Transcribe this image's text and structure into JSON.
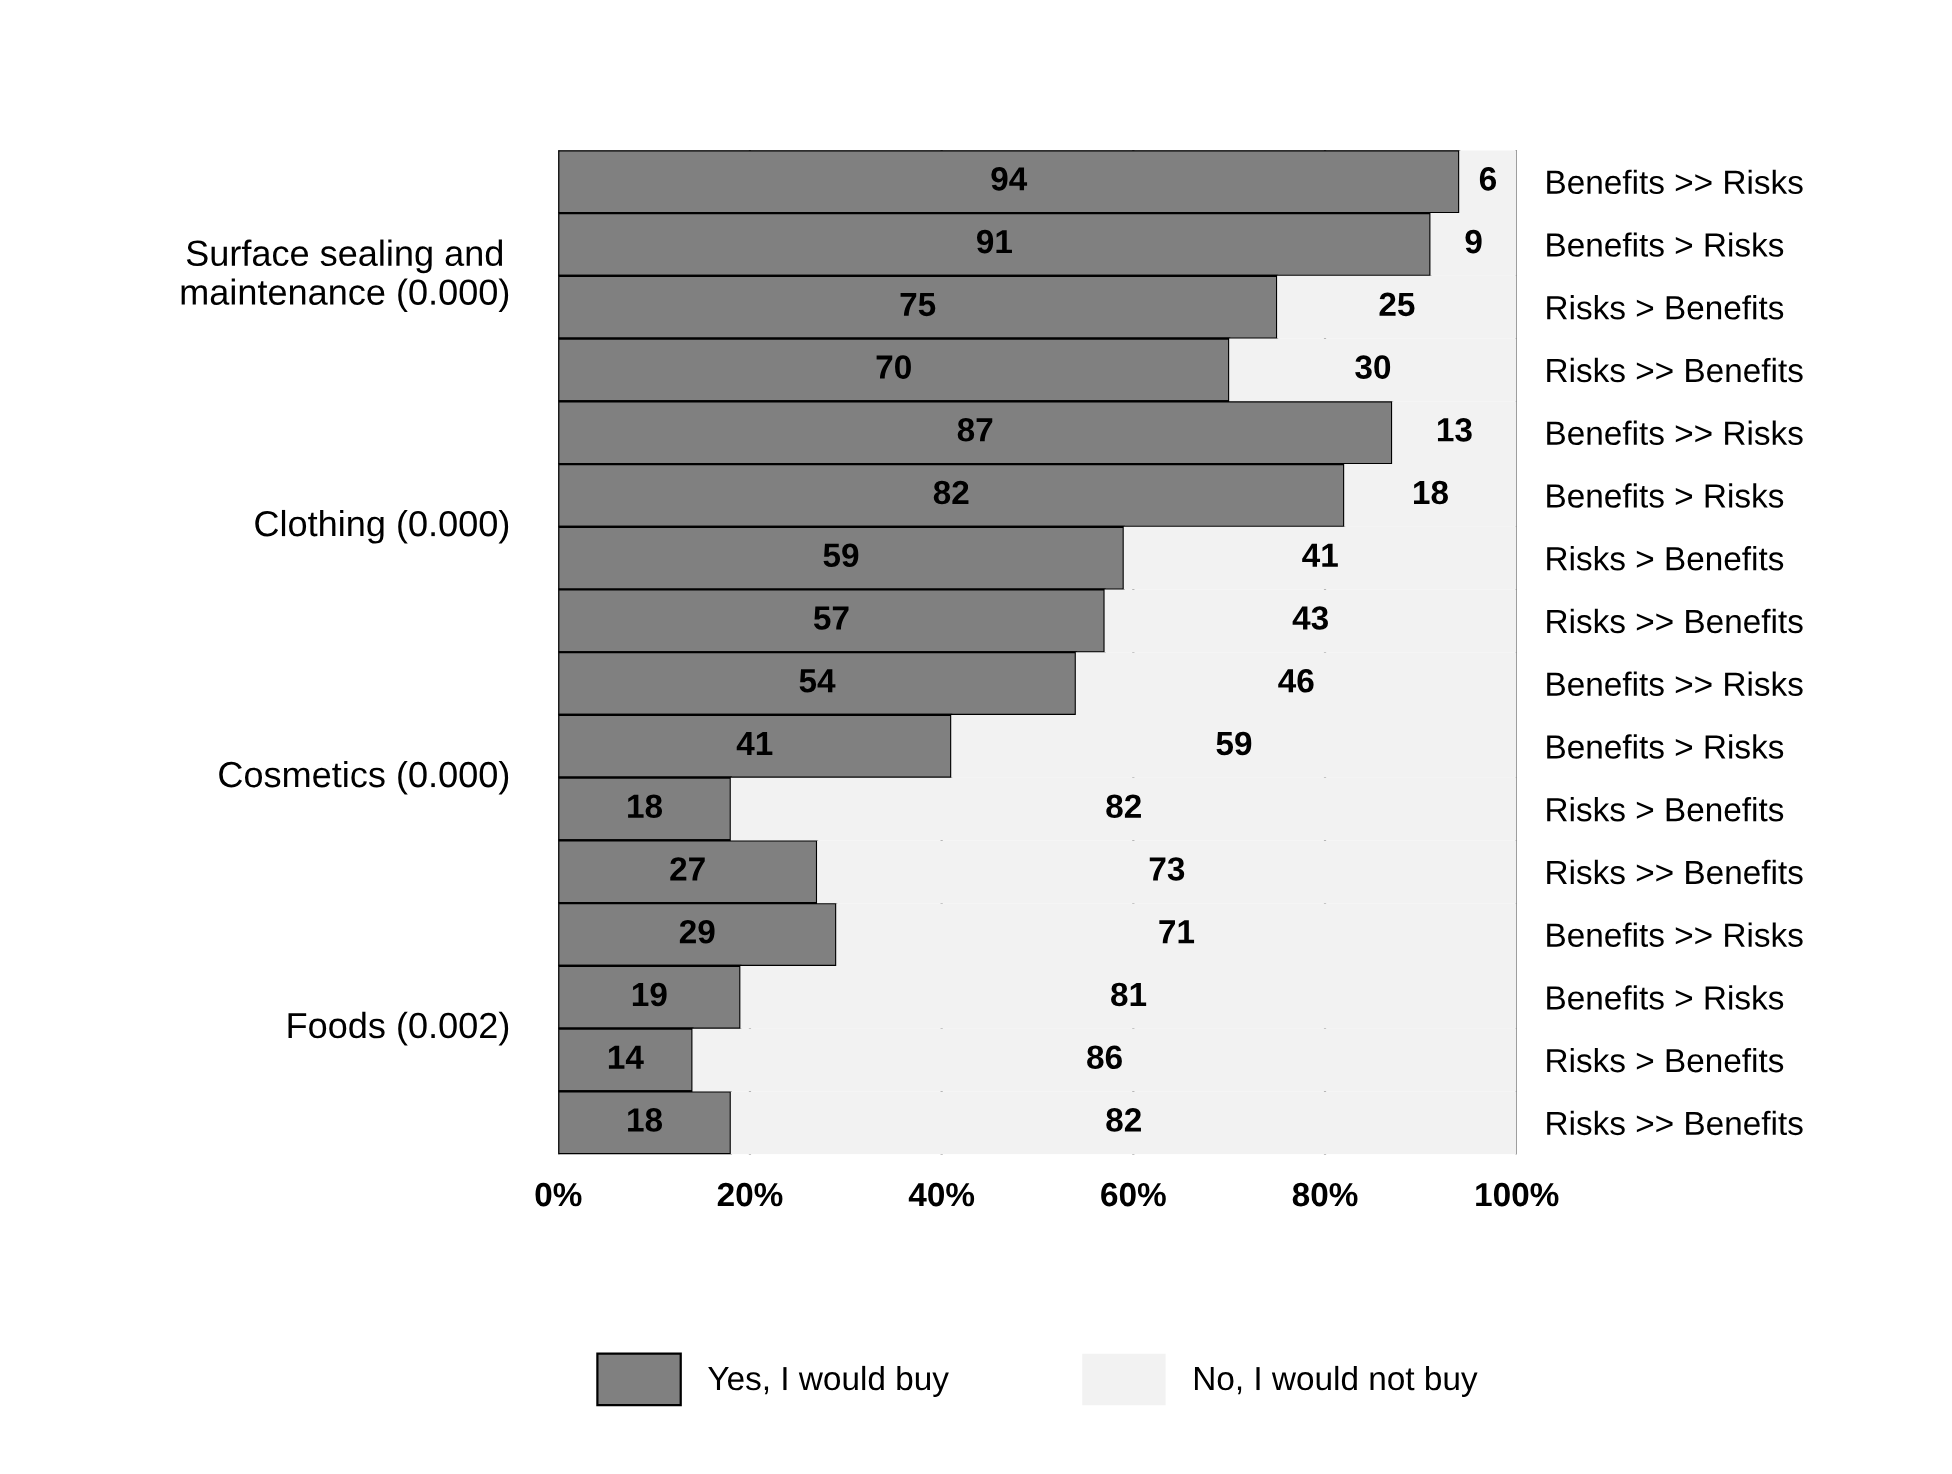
{
  "chart_data": {
    "type": "bar",
    "orientation": "horizontal",
    "stacked": true,
    "categories": [
      "Benefits >> Risks",
      "Benefits > Risks",
      "Risks > Benefits",
      "Risks >> Benefits",
      "Benefits >> Risks",
      "Benefits > Risks",
      "Risks > Benefits",
      "Risks >> Benefits",
      "Benefits >> Risks",
      "Benefits > Risks",
      "Risks > Benefits",
      "Risks >> Benefits",
      "Benefits >> Risks",
      "Benefits > Risks",
      "Risks > Benefits",
      "Risks >> Benefits"
    ],
    "series": [
      {
        "name": "Yes, I would buy",
        "color": "#808080",
        "values": [
          94,
          91,
          75,
          70,
          87,
          82,
          59,
          57,
          54,
          41,
          18,
          27,
          29,
          19,
          14,
          18
        ]
      },
      {
        "name": "No, I would not buy",
        "color": "#f2f2f2",
        "values": [
          6,
          9,
          25,
          30,
          13,
          18,
          41,
          43,
          46,
          59,
          82,
          73,
          71,
          81,
          86,
          82
        ]
      }
    ],
    "annotations": [
      "Surface sealing and\nmaintenance (0.000)",
      "Clothing (0.000)",
      "Cosmetics (0.000)",
      "Foods (0.002)"
    ],
    "xlim": [
      0,
      100
    ],
    "xticks": [
      {
        "value": 0,
        "label": "0%"
      },
      {
        "value": 20,
        "label": "20%"
      },
      {
        "value": 40,
        "label": "40%"
      },
      {
        "value": 60,
        "label": "60%"
      },
      {
        "value": 80,
        "label": "80%"
      },
      {
        "value": 100,
        "label": "100%"
      }
    ],
    "grid": "x",
    "data_labels": true,
    "legend": "bottom"
  }
}
